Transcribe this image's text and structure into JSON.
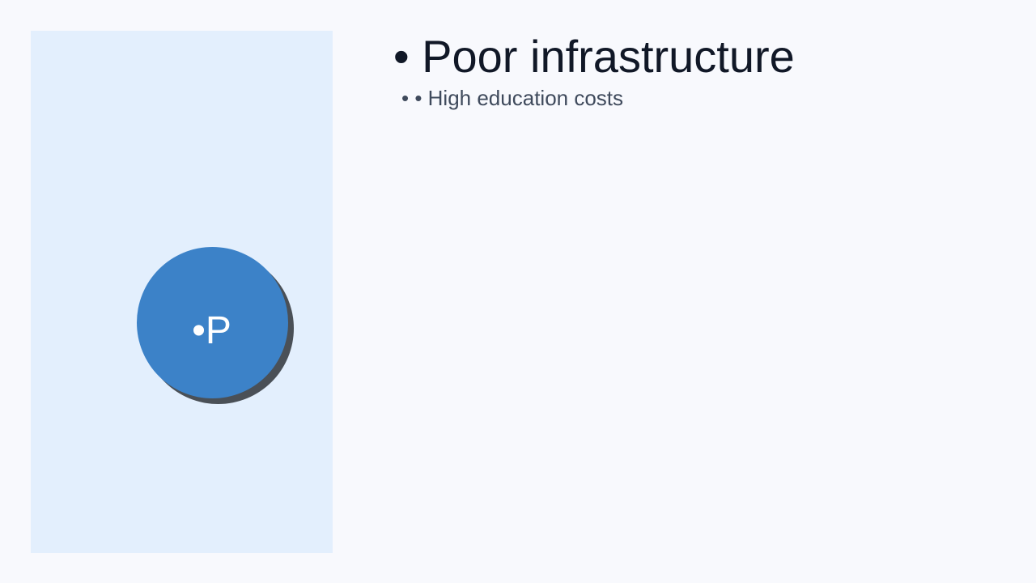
{
  "slide": {
    "avatar_initial": "•P",
    "title": "• Poor infrastructure",
    "subtitle": "• • High education costs"
  },
  "colors": {
    "page_background": "#f8f9fd",
    "left_panel_background": "#e3effd",
    "avatar_fill": "#3c82c8",
    "avatar_shadow": "#4a5057",
    "title_text": "#111827",
    "subtitle_text": "#3f4a5c",
    "avatar_text": "#ffffff"
  }
}
